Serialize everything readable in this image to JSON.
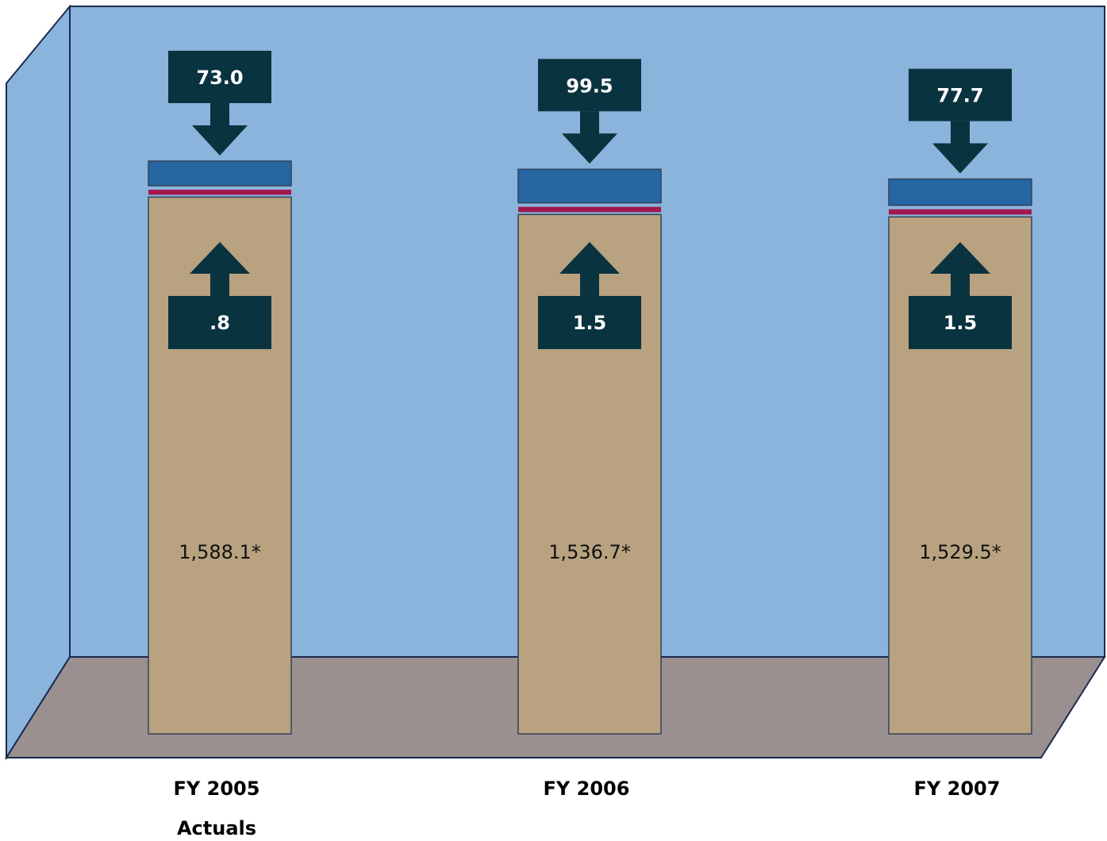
{
  "chart_data": {
    "type": "stacked-bar",
    "categories": [
      "FY 2005",
      "FY 2006",
      "FY 2007"
    ],
    "category_notes": [
      "Actuals",
      null,
      null
    ],
    "series": [
      {
        "color": "#b8a27f",
        "values": [
          1588.1,
          1536.7,
          1529.5
        ],
        "value_labels": [
          "1,588.1*",
          "1,536.7*",
          "1,529.5*"
        ]
      },
      {
        "color": "#a3174e",
        "values": [
          0.8,
          1.5,
          1.5
        ],
        "value_labels": [
          ".8",
          "1.5",
          "1.5"
        ]
      },
      {
        "color": "#2566a3",
        "values": [
          73.0,
          99.5,
          77.7
        ],
        "value_labels": [
          "73.0",
          "99.5",
          "77.7"
        ]
      }
    ]
  }
}
